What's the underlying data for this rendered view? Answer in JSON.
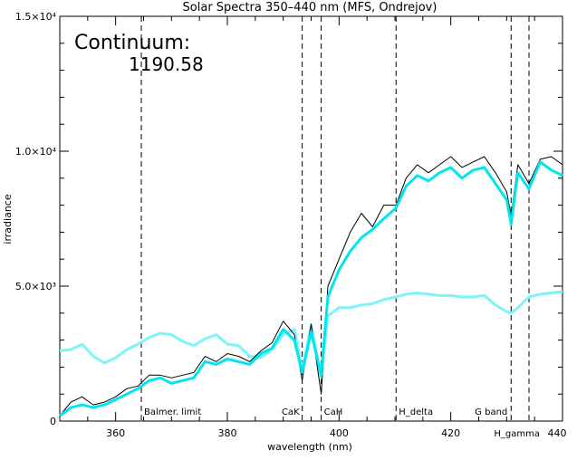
{
  "chart_data": {
    "type": "line",
    "title": "Solar Spectra 350–440 nm (MFS, Ondrejov)",
    "xlabel": "wavelength (nm)",
    "ylabel": "irradiance",
    "xlim": [
      350,
      440
    ],
    "ylim": [
      0,
      15000
    ],
    "x_ticks": [
      360,
      380,
      400,
      420,
      440
    ],
    "y_ticks": [
      {
        "value": 0,
        "label": "0"
      },
      {
        "value": 5000,
        "label": "5.0×10³"
      },
      {
        "value": 10000,
        "label": "1.0×10⁴"
      },
      {
        "value": 15000,
        "label": "1.5×10⁴"
      }
    ],
    "annotation": {
      "label": "Continuum:",
      "value": "1190.58"
    },
    "markers": [
      {
        "x": 364.6,
        "label": "Balmer. limit"
      },
      {
        "x": 393.4,
        "label": "CaK"
      },
      {
        "x": 396.8,
        "label": "CaH"
      },
      {
        "x": 410.2,
        "label": "H_delta"
      },
      {
        "x": 430.8,
        "label": "G band"
      },
      {
        "x": 434.0,
        "label": "H_gamma"
      }
    ],
    "series": [
      {
        "key": "spectrum",
        "color": "#000000",
        "x": [
          350,
          352,
          354,
          356,
          358,
          360,
          362,
          364,
          366,
          368,
          370,
          372,
          374,
          376,
          378,
          380,
          382,
          384,
          386,
          388,
          390,
          392,
          393.4,
          395,
          396.8,
          398,
          400,
          402,
          404,
          406,
          408,
          410.2,
          412,
          414,
          416,
          418,
          420,
          422,
          424,
          426,
          428,
          430,
          430.8,
          432,
          434,
          436,
          438,
          440
        ],
        "y": [
          200,
          700,
          900,
          600,
          700,
          900,
          1200,
          1300,
          1700,
          1700,
          1600,
          1700,
          1800,
          2400,
          2200,
          2500,
          2400,
          2200,
          2600,
          2900,
          3700,
          3200,
          1500,
          3600,
          1000,
          5000,
          6000,
          7000,
          7700,
          7200,
          8000,
          8000,
          9000,
          9500,
          9200,
          9500,
          9800,
          9400,
          9600,
          9800,
          9200,
          8500,
          7600,
          9500,
          8800,
          9700,
          9800,
          9500
        ]
      },
      {
        "key": "smoothed",
        "color": "#00e5ee",
        "x": [
          350,
          352,
          354,
          356,
          358,
          360,
          362,
          364,
          366,
          368,
          370,
          372,
          374,
          376,
          378,
          380,
          382,
          384,
          386,
          388,
          390,
          392,
          393.4,
          395,
          396.8,
          398,
          400,
          402,
          404,
          406,
          408,
          410.2,
          412,
          414,
          416,
          418,
          420,
          422,
          424,
          426,
          428,
          430,
          430.8,
          432,
          434,
          436,
          438,
          440
        ],
        "y": [
          200,
          500,
          600,
          500,
          600,
          800,
          1000,
          1200,
          1500,
          1600,
          1400,
          1500,
          1600,
          2200,
          2100,
          2300,
          2200,
          2100,
          2500,
          2700,
          3400,
          3000,
          1800,
          3300,
          1700,
          4600,
          5600,
          6300,
          6800,
          7100,
          7500,
          7900,
          8700,
          9100,
          8900,
          9200,
          9400,
          9000,
          9300,
          9400,
          8800,
          8200,
          7300,
          9200,
          8600,
          9600,
          9300,
          9100
        ]
      },
      {
        "key": "continuum",
        "color": "#7ff4f8",
        "x": [
          350,
          352,
          354,
          356,
          358,
          360,
          362,
          364,
          366,
          368,
          370,
          372,
          374,
          376,
          378,
          380,
          382,
          384,
          386,
          388,
          390,
          392,
          393.4,
          395,
          396.8,
          398,
          400,
          402,
          404,
          406,
          408,
          410.2,
          412,
          414,
          416,
          418,
          420,
          422,
          424,
          426,
          428,
          430,
          430.8,
          432,
          434,
          436,
          438,
          440
        ],
        "y": [
          2600,
          2650,
          2850,
          2400,
          2150,
          2350,
          2650,
          2850,
          3100,
          3250,
          3200,
          2950,
          2800,
          3050,
          3200,
          2850,
          2800,
          2400,
          2350,
          2650,
          3200,
          3400,
          1900,
          3550,
          1600,
          3900,
          4200,
          4200,
          4300,
          4350,
          4500,
          4600,
          4700,
          4750,
          4700,
          4650,
          4650,
          4600,
          4600,
          4650,
          4300,
          4050,
          4000,
          4200,
          4600,
          4700,
          4750,
          4800
        ]
      }
    ],
    "grid": false,
    "legend": "none"
  }
}
